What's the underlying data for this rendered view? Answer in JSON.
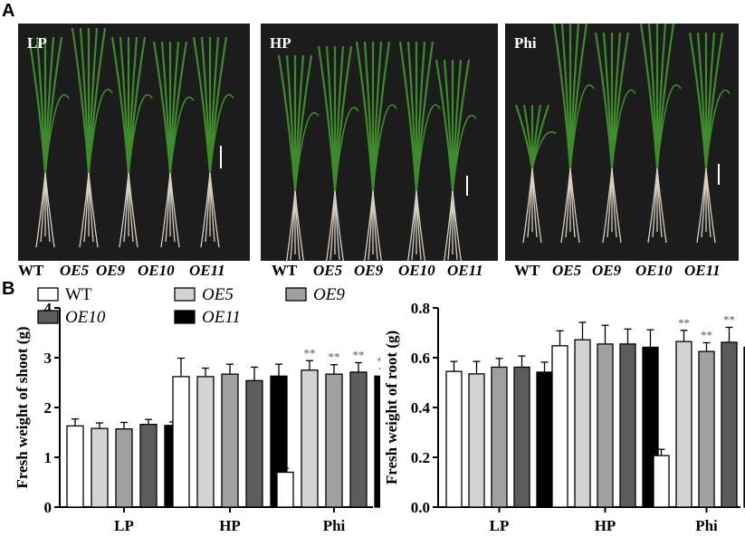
{
  "panel_labels": {
    "a": "A",
    "b": "B"
  },
  "photos": [
    {
      "label": "LP"
    },
    {
      "label": "HP"
    },
    {
      "label": "Phi"
    }
  ],
  "genotypes": [
    "WT",
    "OE5",
    "OE9",
    "OE10",
    "OE11"
  ],
  "colors": {
    "WT": "#ffffff",
    "OE5": "#d3d3d3",
    "OE9": "#a0a0a0",
    "OE10": "#5c5c5c",
    "OE11": "#000000",
    "sig": "#555555",
    "photo_bg": "#1c1c1c",
    "plant_leaf": "#3f8a2c",
    "plant_root": "#d8cfc2"
  },
  "legend": [
    "WT",
    "OE5",
    "OE9",
    "OE10",
    "OE11"
  ],
  "chart_data": [
    {
      "type": "bar",
      "ylabel": "Fresh weight of shoot (g)",
      "categories": [
        "LP",
        "HP",
        "Phi"
      ],
      "ylim": [
        0,
        4
      ],
      "yticks": [
        "0",
        "1",
        "2",
        "3",
        "4"
      ],
      "series": [
        {
          "name": "WT",
          "values": [
            1.63,
            2.62,
            0.7
          ],
          "errors": [
            0.14,
            0.37,
            0.08
          ]
        },
        {
          "name": "OE5",
          "values": [
            1.58,
            2.62,
            2.75
          ],
          "errors": [
            0.11,
            0.17,
            0.19
          ]
        },
        {
          "name": "OE9",
          "values": [
            1.57,
            2.67,
            2.67
          ],
          "errors": [
            0.13,
            0.2,
            0.19
          ]
        },
        {
          "name": "OE10",
          "values": [
            1.66,
            2.54,
            2.71
          ],
          "errors": [
            0.1,
            0.27,
            0.19
          ]
        },
        {
          "name": "OE11",
          "values": [
            1.64,
            2.63,
            2.63
          ],
          "errors": [
            0.07,
            0.24,
            0.15
          ]
        }
      ],
      "annotations": [
        {
          "category": "Phi",
          "series": "OE5",
          "text": "**"
        },
        {
          "category": "Phi",
          "series": "OE9",
          "text": "**"
        },
        {
          "category": "Phi",
          "series": "OE10",
          "text": "**"
        },
        {
          "category": "Phi",
          "series": "OE11",
          "text": "**"
        }
      ]
    },
    {
      "type": "bar",
      "ylabel": "Fresh weight of root (g)",
      "categories": [
        "LP",
        "HP",
        "Phi"
      ],
      "ylim": [
        0,
        0.8
      ],
      "yticks": [
        "0.0",
        "0.2",
        "0.4",
        "0.6",
        "0.8"
      ],
      "series": [
        {
          "name": "WT",
          "values": [
            0.545,
            0.648,
            0.207
          ],
          "errors": [
            0.04,
            0.06,
            0.025
          ]
        },
        {
          "name": "OE5",
          "values": [
            0.535,
            0.672,
            0.665
          ],
          "errors": [
            0.05,
            0.07,
            0.045
          ]
        },
        {
          "name": "OE9",
          "values": [
            0.562,
            0.655,
            0.625
          ],
          "errors": [
            0.035,
            0.075,
            0.035
          ]
        },
        {
          "name": "OE10",
          "values": [
            0.562,
            0.655,
            0.662
          ],
          "errors": [
            0.045,
            0.06,
            0.06
          ]
        },
        {
          "name": "OE11",
          "values": [
            0.542,
            0.642,
            0.642
          ],
          "errors": [
            0.04,
            0.07,
            0.035
          ]
        }
      ],
      "annotations": [
        {
          "category": "Phi",
          "series": "OE5",
          "text": "**"
        },
        {
          "category": "Phi",
          "series": "OE9",
          "text": "**"
        },
        {
          "category": "Phi",
          "series": "OE10",
          "text": "**"
        },
        {
          "category": "Phi",
          "series": "OE11",
          "text": "**"
        }
      ]
    }
  ]
}
